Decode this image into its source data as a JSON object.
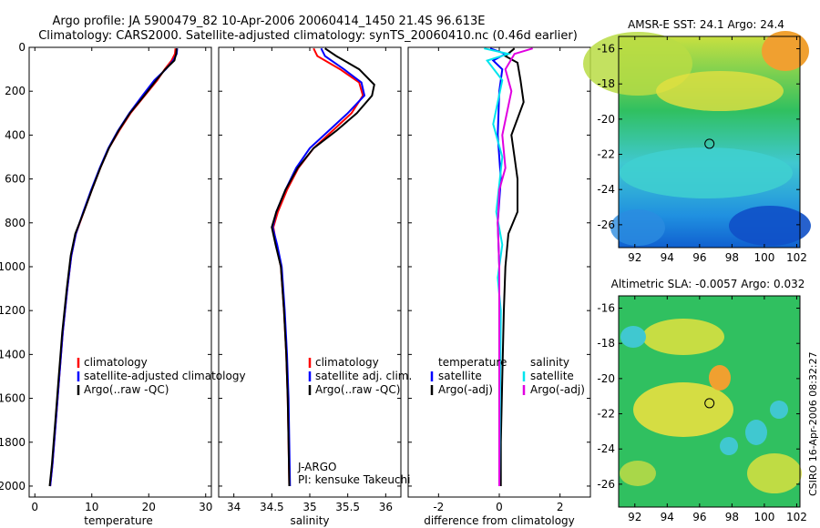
{
  "header": {
    "title_line1": "Argo profile: JA 5900479_82 10-Apr-2006 20060414_1450 21.4S 96.613E",
    "title_line2": "Climatology: CARS2000. Satellite-adjusted climatology: synTS_20060410.nc (0.46d earlier)"
  },
  "colors": {
    "clim": "#ff0000",
    "sat": "#0000ff",
    "argo": "#000000",
    "sat_sal": "#00e5ee",
    "argo_sal": "#e000e0"
  },
  "chart_data": [
    {
      "id": "temperature",
      "type": "line",
      "xlabel": "temperature",
      "xlim": [
        -1,
        31
      ],
      "ylim": [
        0,
        2050
      ],
      "xticks": [
        0,
        10,
        20,
        30
      ],
      "yticks": [
        0,
        200,
        400,
        600,
        800,
        1000,
        1200,
        1400,
        1600,
        1800,
        2000
      ],
      "legend": [
        "climatology",
        "satellite-adjusted climatology",
        "Argo(..raw -QC)"
      ],
      "series": [
        {
          "name": "climatology",
          "color": "clim",
          "points": [
            [
              24.7,
              5
            ],
            [
              24.6,
              30
            ],
            [
              24.0,
              60
            ],
            [
              22.8,
              100
            ],
            [
              21.5,
              150
            ],
            [
              19.3,
              220
            ],
            [
              16.8,
              300
            ],
            [
              14.8,
              380
            ],
            [
              13.0,
              460
            ],
            [
              11.5,
              550
            ],
            [
              10.0,
              650
            ],
            [
              8.6,
              750
            ],
            [
              7.2,
              850
            ],
            [
              6.4,
              950
            ],
            [
              5.7,
              1100
            ],
            [
              4.9,
              1300
            ],
            [
              4.3,
              1500
            ],
            [
              3.7,
              1700
            ],
            [
              3.1,
              1900
            ],
            [
              2.7,
              2000
            ]
          ]
        },
        {
          "name": "satellite-adjusted climatology",
          "color": "sat",
          "points": [
            [
              25.0,
              5
            ],
            [
              24.9,
              30
            ],
            [
              24.3,
              60
            ],
            [
              23.0,
              100
            ],
            [
              21.0,
              150
            ],
            [
              18.9,
              220
            ],
            [
              16.6,
              300
            ],
            [
              14.6,
              380
            ],
            [
              12.9,
              460
            ],
            [
              11.4,
              550
            ],
            [
              9.9,
              650
            ],
            [
              8.5,
              750
            ],
            [
              7.2,
              850
            ],
            [
              6.4,
              950
            ],
            [
              5.7,
              1100
            ],
            [
              4.9,
              1300
            ],
            [
              4.3,
              1500
            ],
            [
              3.7,
              1700
            ],
            [
              3.1,
              1900
            ],
            [
              2.7,
              2000
            ]
          ]
        },
        {
          "name": "Argo(..raw -QC)",
          "color": "argo",
          "points": [
            [
              24.9,
              5
            ],
            [
              24.8,
              30
            ],
            [
              24.5,
              60
            ],
            [
              22.9,
              100
            ],
            [
              21.3,
              150
            ],
            [
              19.2,
              220
            ],
            [
              16.7,
              300
            ],
            [
              14.7,
              380
            ],
            [
              13.0,
              460
            ],
            [
              11.5,
              550
            ],
            [
              10.0,
              650
            ],
            [
              8.6,
              750
            ],
            [
              7.1,
              850
            ],
            [
              6.3,
              950
            ],
            [
              5.6,
              1100
            ],
            [
              4.8,
              1300
            ],
            [
              4.2,
              1500
            ],
            [
              3.6,
              1700
            ],
            [
              3.0,
              1900
            ],
            [
              2.6,
              2000
            ]
          ]
        }
      ]
    },
    {
      "id": "salinity",
      "type": "line",
      "xlabel": "salinity",
      "xlim": [
        33.8,
        36.2
      ],
      "ylim": [
        0,
        2050
      ],
      "xticks": [
        34,
        34.5,
        35,
        35.5,
        36
      ],
      "legend": [
        "climatology",
        "satellite adj. clim.",
        "Argo(..raw -QC)"
      ],
      "annotation": [
        "J-ARGO",
        "PI: kensuke Takeuchi"
      ],
      "series": [
        {
          "name": "climatology",
          "color": "clim",
          "points": [
            [
              35.05,
              5
            ],
            [
              35.1,
              40
            ],
            [
              35.4,
              100
            ],
            [
              35.65,
              160
            ],
            [
              35.7,
              220
            ],
            [
              35.55,
              300
            ],
            [
              35.3,
              380
            ],
            [
              35.05,
              460
            ],
            [
              34.85,
              550
            ],
            [
              34.7,
              650
            ],
            [
              34.58,
              750
            ],
            [
              34.52,
              820
            ],
            [
              34.56,
              900
            ],
            [
              34.62,
              1000
            ],
            [
              34.66,
              1200
            ],
            [
              34.69,
              1400
            ],
            [
              34.71,
              1600
            ],
            [
              34.72,
              1800
            ],
            [
              34.73,
              2000
            ]
          ]
        },
        {
          "name": "satellite adj. clim.",
          "color": "sat",
          "points": [
            [
              35.15,
              5
            ],
            [
              35.2,
              40
            ],
            [
              35.45,
              100
            ],
            [
              35.68,
              160
            ],
            [
              35.72,
              220
            ],
            [
              35.5,
              300
            ],
            [
              35.25,
              380
            ],
            [
              35.0,
              460
            ],
            [
              34.82,
              550
            ],
            [
              34.68,
              650
            ],
            [
              34.56,
              750
            ],
            [
              34.51,
              820
            ],
            [
              34.57,
              900
            ],
            [
              34.63,
              1000
            ],
            [
              34.67,
              1200
            ],
            [
              34.7,
              1400
            ],
            [
              34.72,
              1600
            ],
            [
              34.73,
              1800
            ],
            [
              34.74,
              2000
            ]
          ]
        },
        {
          "name": "Argo(..raw -QC)",
          "color": "argo",
          "points": [
            [
              35.2,
              5
            ],
            [
              35.35,
              40
            ],
            [
              35.65,
              100
            ],
            [
              35.85,
              170
            ],
            [
              35.82,
              220
            ],
            [
              35.62,
              300
            ],
            [
              35.35,
              380
            ],
            [
              35.05,
              460
            ],
            [
              34.84,
              550
            ],
            [
              34.68,
              650
            ],
            [
              34.56,
              750
            ],
            [
              34.5,
              820
            ],
            [
              34.55,
              900
            ],
            [
              34.62,
              1000
            ],
            [
              34.66,
              1200
            ],
            [
              34.69,
              1400
            ],
            [
              34.71,
              1600
            ],
            [
              34.72,
              1800
            ],
            [
              34.73,
              2000
            ]
          ]
        }
      ]
    },
    {
      "id": "difference",
      "type": "line",
      "xlabel": "difference from climatology",
      "xlim": [
        -3,
        3
      ],
      "ylim": [
        0,
        2050
      ],
      "xticks": [
        -2,
        0,
        2
      ],
      "legend_headers": [
        "temperature",
        "salinity"
      ],
      "legend": [
        "satellite",
        "Argo(-adj)",
        "satellite",
        "Argo(-adj)"
      ],
      "series": [
        {
          "name": "temperature satellite",
          "color": "sat",
          "points": [
            [
              -0.3,
              5
            ],
            [
              0.2,
              30
            ],
            [
              -0.2,
              60
            ],
            [
              0.1,
              100
            ],
            [
              0.0,
              200
            ],
            [
              -0.05,
              400
            ],
            [
              0.05,
              600
            ],
            [
              -0.05,
              800
            ],
            [
              0.0,
              1000
            ],
            [
              0.0,
              1400
            ],
            [
              0.0,
              2000
            ]
          ]
        },
        {
          "name": "temperature Argo(-adj)",
          "color": "argo",
          "points": [
            [
              0.5,
              5
            ],
            [
              0.2,
              40
            ],
            [
              0.6,
              70
            ],
            [
              0.7,
              150
            ],
            [
              0.8,
              250
            ],
            [
              0.4,
              400
            ],
            [
              0.5,
              500
            ],
            [
              0.6,
              600
            ],
            [
              0.6,
              750
            ],
            [
              0.3,
              850
            ],
            [
              0.2,
              1000
            ],
            [
              0.15,
              1200
            ],
            [
              0.1,
              1500
            ],
            [
              0.05,
              1800
            ],
            [
              0.05,
              2000
            ]
          ]
        },
        {
          "name": "salinity satellite",
          "color": "sat_sal",
          "points": [
            [
              -0.5,
              5
            ],
            [
              0.3,
              30
            ],
            [
              -0.4,
              60
            ],
            [
              0.1,
              150
            ],
            [
              -0.2,
              350
            ],
            [
              0.1,
              500
            ],
            [
              -0.1,
              750
            ],
            [
              0.1,
              900
            ],
            [
              -0.05,
              1050
            ],
            [
              0.05,
              1200
            ],
            [
              0.0,
              2000
            ]
          ]
        },
        {
          "name": "salinity Argo(-adj)",
          "color": "argo_sal",
          "points": [
            [
              1.1,
              5
            ],
            [
              0.5,
              30
            ],
            [
              0.2,
              100
            ],
            [
              0.4,
              200
            ],
            [
              0.1,
              400
            ],
            [
              0.2,
              550
            ],
            [
              0.0,
              650
            ],
            [
              -0.05,
              800
            ],
            [
              0.0,
              1000
            ],
            [
              0.0,
              2000
            ]
          ]
        }
      ]
    }
  ],
  "maps": [
    {
      "title": "AMSR-E SST: 24.1 Argo: 24.4",
      "xticks": [
        92,
        94,
        96,
        98,
        100,
        102
      ],
      "yticks": [
        -16,
        -18,
        -20,
        -22,
        -24,
        -26
      ],
      "xlim": [
        91,
        102.2
      ],
      "ylim": [
        -27.3,
        -15.3
      ],
      "marker": [
        96.61,
        -21.4
      ]
    },
    {
      "title": "Altimetric SLA: -0.0057 Argo: 0.032",
      "xticks": [
        92,
        94,
        96,
        98,
        100,
        102
      ],
      "yticks": [
        -16,
        -18,
        -20,
        -22,
        -24,
        -26
      ],
      "xlim": [
        91,
        102.2
      ],
      "ylim": [
        -27.3,
        -15.3
      ],
      "marker": [
        96.61,
        -21.4
      ]
    }
  ],
  "footer": {
    "credit": "CSIRO 16-Apr-2006 08:32:27"
  }
}
